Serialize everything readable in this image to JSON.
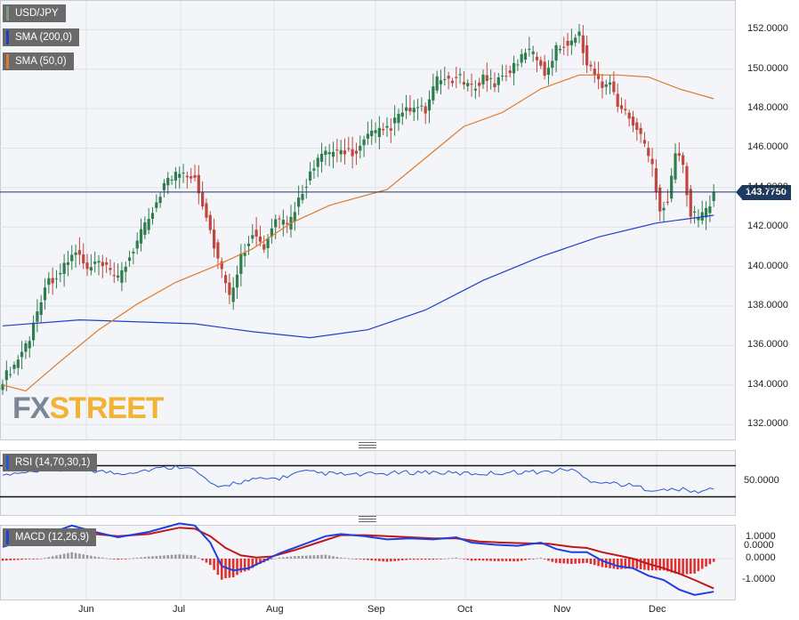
{
  "legends": {
    "pair": "USD/JPY",
    "sma200": "SMA (200,0)",
    "sma50": "SMA (50,0)",
    "rsi": "RSI (14,70,30,1)",
    "macd": "MACD (12,26,9)"
  },
  "last_price_label": "143.7750",
  "logo": {
    "part1": "FX",
    "part2": "STREET"
  },
  "colors": {
    "up_candle": "#2e7d4f",
    "down_candle": "#c0473f",
    "sma200": "#1f3fc9",
    "sma50": "#e07a2a",
    "rsi_line": "#2a55d0",
    "macd_line": "#1f3fe0",
    "signal_line": "#c01818",
    "hist_pos": "#9a9a9a",
    "hist_neg": "#e03030",
    "price_tag": "#1f3a5f"
  },
  "chart_data": [
    {
      "type": "candlestick",
      "title": "USD/JPY",
      "x_tick_labels": [
        "Jun",
        "Jul",
        "Aug",
        "Sep",
        "Oct",
        "Nov",
        "Dec"
      ],
      "y_tick_labels": [
        "152.0000",
        "150.0000",
        "148.0000",
        "146.0000",
        "144.0000",
        "142.0000",
        "140.0000",
        "138.0000",
        "136.0000",
        "134.0000",
        "132.0000"
      ],
      "ylim": [
        131.2,
        153.5
      ],
      "last_price": 143.775,
      "close_anchors": [
        [
          0,
          134.3
        ],
        [
          3,
          135.0
        ],
        [
          7,
          136.4
        ],
        [
          11,
          139.1
        ],
        [
          15,
          139.7
        ],
        [
          19,
          140.8
        ],
        [
          22,
          139.8
        ],
        [
          25,
          140.2
        ],
        [
          30,
          139.3
        ],
        [
          34,
          140.9
        ],
        [
          38,
          142.4
        ],
        [
          42,
          144.2
        ],
        [
          46,
          144.8
        ],
        [
          50,
          144.6
        ],
        [
          53,
          142.5
        ],
        [
          56,
          140.4
        ],
        [
          59,
          138.4
        ],
        [
          62,
          140.5
        ],
        [
          65,
          141.8
        ],
        [
          68,
          140.8
        ],
        [
          71,
          142.4
        ],
        [
          74,
          142.0
        ],
        [
          77,
          143.4
        ],
        [
          80,
          144.7
        ],
        [
          83,
          145.6
        ],
        [
          86,
          145.8
        ],
        [
          89,
          145.9
        ],
        [
          92,
          145.7
        ],
        [
          95,
          146.6
        ],
        [
          98,
          146.8
        ],
        [
          101,
          147.1
        ],
        [
          104,
          147.8
        ],
        [
          107,
          148.0
        ],
        [
          110,
          147.9
        ],
        [
          113,
          149.4
        ],
        [
          116,
          149.5
        ],
        [
          119,
          149.5
        ],
        [
          122,
          149.0
        ],
        [
          125,
          149.6
        ],
        [
          128,
          149.3
        ],
        [
          131,
          149.8
        ],
        [
          134,
          150.2
        ],
        [
          136,
          151.0
        ],
        [
          139,
          150.6
        ],
        [
          141,
          149.8
        ],
        [
          144,
          151.0
        ],
        [
          147,
          151.4
        ],
        [
          150,
          151.7
        ],
        [
          152,
          150.4
        ],
        [
          155,
          149.3
        ],
        [
          158,
          149.2
        ],
        [
          160,
          148.3
        ],
        [
          162,
          147.7
        ],
        [
          164,
          147.3
        ],
        [
          166,
          146.6
        ],
        [
          169,
          145.1
        ],
        [
          171,
          142.9
        ],
        [
          173,
          143.4
        ],
        [
          175,
          145.8
        ],
        [
          177,
          145.1
        ],
        [
          179,
          142.6
        ],
        [
          181,
          142.5
        ],
        [
          183,
          142.8
        ],
        [
          185,
          143.8
        ]
      ],
      "series": [
        {
          "name": "SMA (200,0)",
          "points": [
            [
              0,
              137.0
            ],
            [
              20,
              137.3
            ],
            [
              50,
              137.1
            ],
            [
              65,
              136.7
            ],
            [
              80,
              136.4
            ],
            [
              95,
              136.8
            ],
            [
              110,
              137.8
            ],
            [
              125,
              139.3
            ],
            [
              140,
              140.5
            ],
            [
              155,
              141.5
            ],
            [
              170,
              142.2
            ],
            [
              185,
              142.6
            ]
          ]
        },
        {
          "name": "SMA (50,0)",
          "points": [
            [
              0,
              134.0
            ],
            [
              6,
              133.7
            ],
            [
              15,
              135.2
            ],
            [
              25,
              136.8
            ],
            [
              35,
              138.1
            ],
            [
              45,
              139.2
            ],
            [
              55,
              140.0
            ],
            [
              65,
              140.9
            ],
            [
              75,
              142.2
            ],
            [
              85,
              143.1
            ],
            [
              100,
              143.9
            ],
            [
              110,
              145.5
            ],
            [
              120,
              147.1
            ],
            [
              130,
              147.8
            ],
            [
              140,
              149.0
            ],
            [
              150,
              149.7
            ],
            [
              160,
              149.7
            ],
            [
              168,
              149.6
            ],
            [
              176,
              149.0
            ],
            [
              185,
              148.5
            ]
          ]
        }
      ]
    },
    {
      "type": "line",
      "title": "RSI (14,70,30,1)",
      "y_tick_labels": [
        "50.0000",
        "0.0000"
      ],
      "ylim": [
        0,
        100
      ],
      "levels": [
        70,
        30
      ],
      "series": [
        {
          "name": "RSI (14,70,30,1)",
          "points": [
            [
              0,
              58
            ],
            [
              10,
              62
            ],
            [
              20,
              66
            ],
            [
              30,
              60
            ],
            [
              40,
              66
            ],
            [
              48,
              70
            ],
            [
              53,
              52
            ],
            [
              56,
              40
            ],
            [
              60,
              48
            ],
            [
              66,
              52
            ],
            [
              72,
              54
            ],
            [
              78,
              62
            ],
            [
              84,
              60
            ],
            [
              92,
              58
            ],
            [
              100,
              60
            ],
            [
              110,
              62
            ],
            [
              118,
              60
            ],
            [
              126,
              60
            ],
            [
              134,
              62
            ],
            [
              142,
              62
            ],
            [
              148,
              66
            ],
            [
              152,
              52
            ],
            [
              158,
              48
            ],
            [
              164,
              44
            ],
            [
              168,
              40
            ],
            [
              172,
              38
            ],
            [
              176,
              40
            ],
            [
              180,
              36
            ],
            [
              185,
              40
            ]
          ]
        }
      ]
    },
    {
      "type": "line",
      "title": "MACD (12,26,9)",
      "y_tick_labels": [
        "1.0000",
        "0.0000",
        "-1.0000"
      ],
      "ylim": [
        -1.7,
        1.7
      ],
      "series": [
        {
          "name": "MACD",
          "points": [
            [
              0,
              0.55
            ],
            [
              10,
              1.05
            ],
            [
              18,
              1.55
            ],
            [
              24,
              1.25
            ],
            [
              30,
              1.0
            ],
            [
              38,
              1.25
            ],
            [
              46,
              1.65
            ],
            [
              50,
              1.55
            ],
            [
              54,
              0.75
            ],
            [
              57,
              -0.35
            ],
            [
              60,
              -0.55
            ],
            [
              64,
              -0.45
            ],
            [
              68,
              -0.1
            ],
            [
              72,
              0.25
            ],
            [
              78,
              0.65
            ],
            [
              84,
              1.05
            ],
            [
              88,
              1.15
            ],
            [
              94,
              1.05
            ],
            [
              100,
              0.9
            ],
            [
              106,
              0.95
            ],
            [
              112,
              0.9
            ],
            [
              118,
              1.0
            ],
            [
              122,
              0.75
            ],
            [
              128,
              0.65
            ],
            [
              134,
              0.6
            ],
            [
              140,
              0.75
            ],
            [
              144,
              0.45
            ],
            [
              148,
              0.3
            ],
            [
              152,
              0.3
            ],
            [
              156,
              -0.1
            ],
            [
              160,
              -0.35
            ],
            [
              164,
              -0.45
            ],
            [
              168,
              -0.8
            ],
            [
              172,
              -1.0
            ],
            [
              176,
              -1.45
            ],
            [
              180,
              -1.7
            ],
            [
              185,
              -1.55
            ]
          ]
        },
        {
          "name": "Signal",
          "points": [
            [
              0,
              0.65
            ],
            [
              10,
              1.05
            ],
            [
              18,
              1.25
            ],
            [
              24,
              1.15
            ],
            [
              30,
              1.05
            ],
            [
              38,
              1.15
            ],
            [
              46,
              1.45
            ],
            [
              50,
              1.4
            ],
            [
              54,
              1.05
            ],
            [
              58,
              0.5
            ],
            [
              62,
              0.15
            ],
            [
              66,
              0.05
            ],
            [
              70,
              0.1
            ],
            [
              76,
              0.4
            ],
            [
              82,
              0.75
            ],
            [
              88,
              1.1
            ],
            [
              94,
              1.1
            ],
            [
              100,
              1.05
            ],
            [
              106,
              1.0
            ],
            [
              112,
              0.95
            ],
            [
              118,
              0.95
            ],
            [
              124,
              0.8
            ],
            [
              130,
              0.75
            ],
            [
              136,
              0.72
            ],
            [
              142,
              0.7
            ],
            [
              148,
              0.55
            ],
            [
              152,
              0.5
            ],
            [
              156,
              0.3
            ],
            [
              160,
              0.15
            ],
            [
              164,
              0.0
            ],
            [
              168,
              -0.25
            ],
            [
              172,
              -0.45
            ],
            [
              176,
              -0.7
            ],
            [
              180,
              -1.0
            ],
            [
              185,
              -1.4
            ]
          ]
        }
      ]
    }
  ]
}
